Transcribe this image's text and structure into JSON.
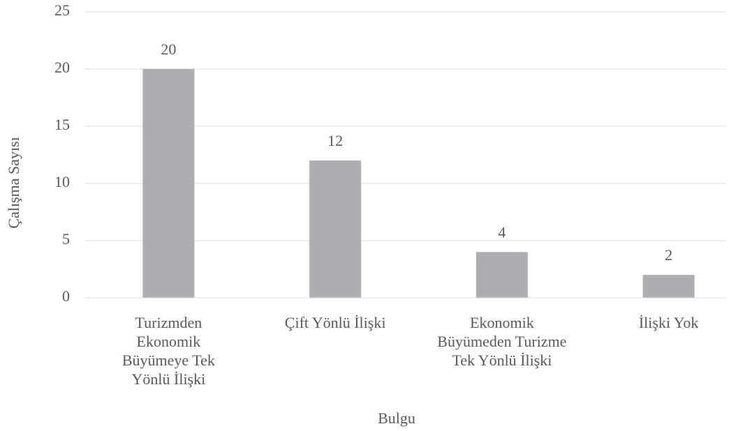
{
  "chart_data": {
    "type": "bar",
    "categories": [
      "Turizmden Ekonomik Büyümeye Tek Yönlü İlişki",
      "Çift Yönlü İlişki",
      "Ekonomik Büyümeden Turizme Tek Yönlü İlişki",
      "İlişki Yok"
    ],
    "values": [
      20,
      12,
      4,
      2
    ],
    "color": "#aeaeb2",
    "ylim": [
      0,
      25
    ],
    "yticks": [
      0,
      5,
      10,
      15,
      20,
      25
    ],
    "grid": true,
    "xlabel": "Bulgu",
    "ylabel": "Çalışma Sayısı"
  }
}
